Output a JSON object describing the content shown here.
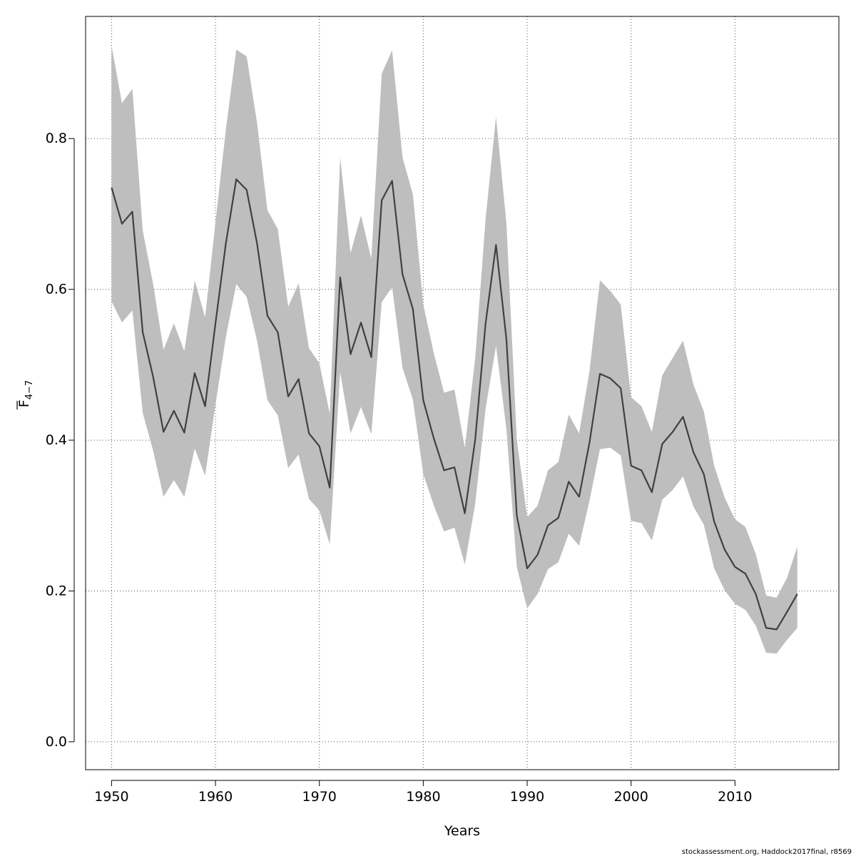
{
  "chart_data": {
    "type": "line",
    "xlabel": "Years",
    "ylabel": {
      "base": "F",
      "subscript": "4−7"
    },
    "xlim": [
      1947.5,
      2020
    ],
    "ylim": [
      -0.037,
      0.962
    ],
    "x_ticks": [
      1950,
      1960,
      1970,
      1980,
      1990,
      2000,
      2010
    ],
    "y_ticks": [
      0.0,
      0.2,
      0.4,
      0.6,
      0.8
    ],
    "y_tick_labels": [
      "0.0",
      "0.2",
      "0.4",
      "0.6",
      "0.8"
    ],
    "grid": true,
    "band_fill_color": "#bebebe",
    "line_color": "#404040",
    "years": [
      1950,
      1951,
      1952,
      1953,
      1954,
      1955,
      1956,
      1957,
      1958,
      1959,
      1960,
      1961,
      1962,
      1963,
      1964,
      1965,
      1966,
      1967,
      1968,
      1969,
      1970,
      1971,
      1972,
      1973,
      1974,
      1975,
      1976,
      1977,
      1978,
      1979,
      1980,
      1981,
      1982,
      1983,
      1984,
      1985,
      1986,
      1987,
      1988,
      1989,
      1990,
      1991,
      1992,
      1993,
      1994,
      1995,
      1996,
      1997,
      1998,
      1999,
      2000,
      2001,
      2002,
      2003,
      2004,
      2005,
      2006,
      2007,
      2008,
      2009,
      2010,
      2011,
      2012,
      2013,
      2014,
      2015,
      2016
    ],
    "series": [
      {
        "name": "F4-7 estimate",
        "values": [
          0.735,
          0.687,
          0.703,
          0.543,
          0.484,
          0.411,
          0.439,
          0.41,
          0.489,
          0.445,
          0.555,
          0.661,
          0.746,
          0.732,
          0.661,
          0.565,
          0.543,
          0.458,
          0.481,
          0.409,
          0.392,
          0.337,
          0.616,
          0.514,
          0.556,
          0.51,
          0.718,
          0.744,
          0.62,
          0.574,
          0.453,
          0.403,
          0.36,
          0.364,
          0.303,
          0.401,
          0.555,
          0.659,
          0.534,
          0.3,
          0.23,
          0.248,
          0.287,
          0.297,
          0.345,
          0.325,
          0.397,
          0.488,
          0.482,
          0.469,
          0.366,
          0.36,
          0.331,
          0.395,
          0.411,
          0.431,
          0.384,
          0.355,
          0.292,
          0.255,
          0.232,
          0.223,
          0.196,
          0.151,
          0.149,
          0.172,
          0.196
        ]
      },
      {
        "name": "upper bound",
        "values": [
          0.923,
          0.847,
          0.866,
          0.678,
          0.607,
          0.52,
          0.555,
          0.518,
          0.612,
          0.563,
          0.689,
          0.812,
          0.918,
          0.909,
          0.821,
          0.705,
          0.68,
          0.577,
          0.608,
          0.522,
          0.502,
          0.435,
          0.775,
          0.648,
          0.698,
          0.641,
          0.886,
          0.917,
          0.775,
          0.726,
          0.58,
          0.516,
          0.463,
          0.467,
          0.39,
          0.509,
          0.694,
          0.829,
          0.688,
          0.401,
          0.298,
          0.313,
          0.36,
          0.371,
          0.434,
          0.409,
          0.492,
          0.612,
          0.598,
          0.58,
          0.457,
          0.445,
          0.411,
          0.486,
          0.509,
          0.532,
          0.474,
          0.438,
          0.366,
          0.324,
          0.295,
          0.285,
          0.249,
          0.194,
          0.191,
          0.217,
          0.259
        ]
      },
      {
        "name": "lower bound",
        "values": [
          0.584,
          0.556,
          0.572,
          0.436,
          0.386,
          0.325,
          0.347,
          0.325,
          0.389,
          0.353,
          0.447,
          0.537,
          0.607,
          0.59,
          0.532,
          0.453,
          0.433,
          0.363,
          0.381,
          0.322,
          0.307,
          0.262,
          0.49,
          0.409,
          0.444,
          0.408,
          0.583,
          0.603,
          0.496,
          0.454,
          0.355,
          0.314,
          0.279,
          0.284,
          0.235,
          0.316,
          0.442,
          0.525,
          0.415,
          0.232,
          0.177,
          0.196,
          0.229,
          0.238,
          0.276,
          0.26,
          0.32,
          0.388,
          0.39,
          0.38,
          0.293,
          0.29,
          0.267,
          0.321,
          0.334,
          0.352,
          0.312,
          0.288,
          0.23,
          0.201,
          0.183,
          0.175,
          0.154,
          0.118,
          0.117,
          0.135,
          0.151
        ]
      }
    ]
  },
  "footer": {
    "credit": "stockassessment.org, Haddock2017final, r8569"
  }
}
